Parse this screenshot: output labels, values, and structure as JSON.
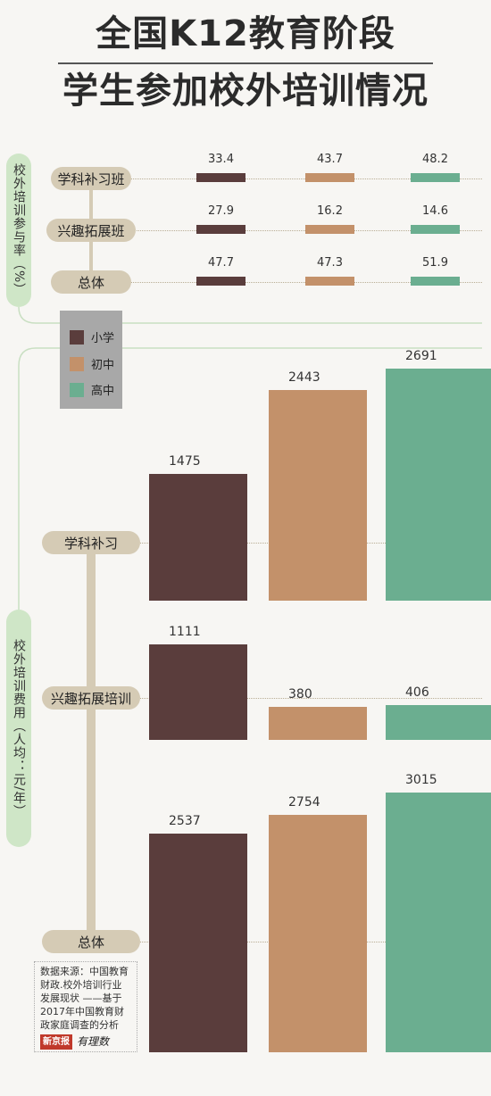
{
  "title": {
    "line1": "全国K12教育阶段",
    "line2": "学生参加校外培训情况"
  },
  "section_participation": {
    "label": "校外培训参与率（%）"
  },
  "section_cost": {
    "label": "校外培训费用（人均：元/年）"
  },
  "legend": {
    "items": [
      {
        "label": "小学",
        "color": "#5a3d3c"
      },
      {
        "label": "初中",
        "color": "#c3916a"
      },
      {
        "label": "高中",
        "color": "#6bae90"
      }
    ]
  },
  "source": {
    "text": "数据来源：中国教育财政.校外培训行业发展现状 ——基于2017年中国教育财政家庭调查的分析",
    "brand1": "新京报",
    "brand2": "有理数"
  },
  "chart_data": [
    {
      "type": "bar",
      "title": "校外培训参与率（%）",
      "categories": [
        "学科补习班",
        "兴趣拓展班",
        "总体"
      ],
      "series": [
        {
          "name": "小学",
          "values": [
            33.4,
            27.9,
            47.7
          ]
        },
        {
          "name": "初中",
          "values": [
            43.7,
            16.2,
            47.3
          ]
        },
        {
          "name": "高中",
          "values": [
            48.2,
            14.6,
            51.9
          ]
        }
      ],
      "value_labels": [
        [
          "33.4",
          "43.7",
          "48.2"
        ],
        [
          "27.9",
          "16.2",
          "14.6"
        ],
        [
          "47.7",
          "47.3",
          "51.9"
        ]
      ]
    },
    {
      "type": "bar",
      "title": "校外培训费用（人均：元/年）",
      "categories": [
        "学科补习",
        "兴趣拓展培训",
        "总体"
      ],
      "series": [
        {
          "name": "小学",
          "values": [
            1475,
            1111,
            2537
          ]
        },
        {
          "name": "初中",
          "values": [
            2443,
            380,
            2754
          ]
        },
        {
          "name": "高中",
          "values": [
            2691,
            406,
            3015
          ]
        }
      ],
      "value_labels": [
        [
          "1475",
          "2443",
          "2691"
        ],
        [
          "1111",
          "380",
          "406"
        ],
        [
          "2537",
          "2754",
          "3015"
        ]
      ]
    }
  ]
}
